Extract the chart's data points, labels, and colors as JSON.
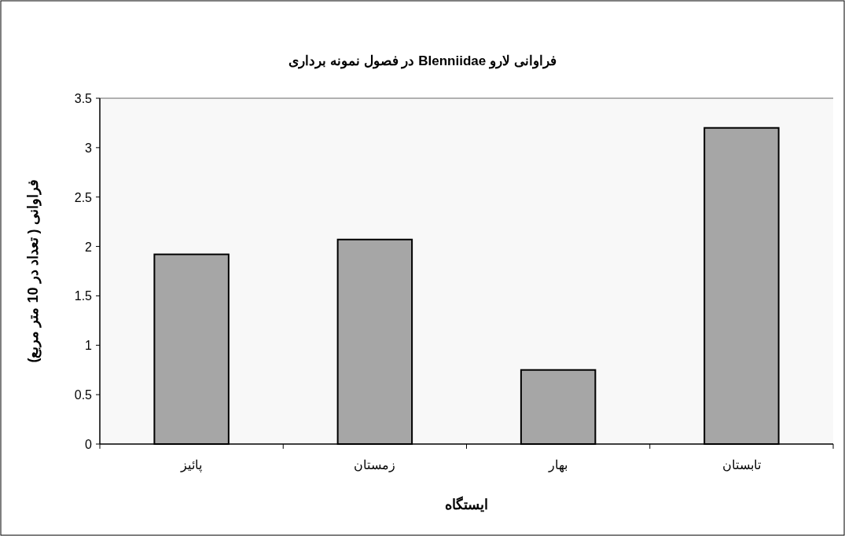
{
  "chart_data": {
    "type": "bar",
    "title": "فراوانی لارو Blenniidae  در فصول نمونه برداری",
    "xlabel": "ایستگاه",
    "ylabel": "فراوانی ( تعداد در 10 متر مربع)",
    "categories": [
      "پائیز",
      "زمستان",
      "بهار",
      "تابستان"
    ],
    "values": [
      1.92,
      2.07,
      0.75,
      3.2
    ],
    "color": "#a6a6a6",
    "ylim": [
      0,
      3.5
    ],
    "yticks": [
      0,
      {
        "value": 0.5,
        "label": "0.5"
      },
      1,
      {
        "value": 1.5,
        "label": "1.5"
      },
      2,
      {
        "value": 2.5,
        "label": "2.5"
      },
      3,
      {
        "value": 3.5,
        "label": "3.5"
      }
    ],
    "grid": false
  }
}
